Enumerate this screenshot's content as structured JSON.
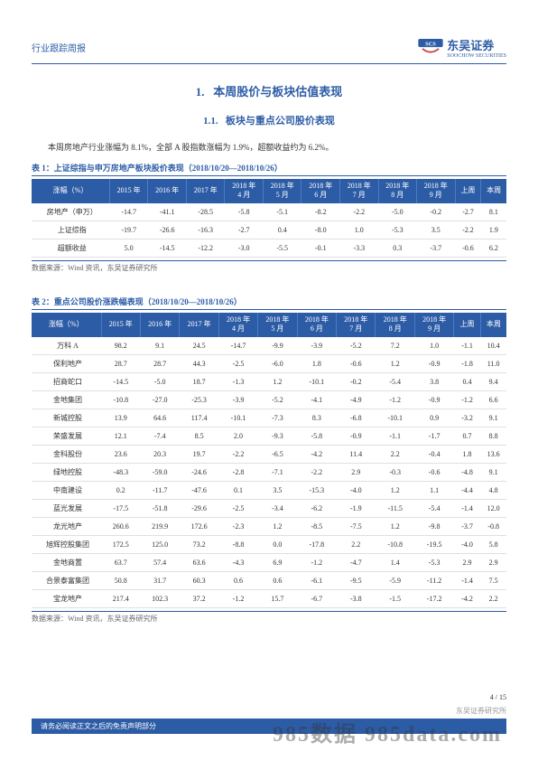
{
  "header": {
    "title": "行业跟踪周报",
    "company": "东吴证券",
    "company_en": "SOOCHOW SECURITIES"
  },
  "section": {
    "number": "1.",
    "title": "本周股价与板块估值表现"
  },
  "subsection": {
    "number": "1.1.",
    "title": "板块与重点公司股价表现"
  },
  "body_text": "本周房地产行业涨幅为 8.1%，全部 A 股指数涨幅为 1.9%，超额收益约为 6.2%。",
  "table1": {
    "title": "表 1：上证综指与申万房地产板块股价表现（2018/10/20—2018/10/26）",
    "columns": [
      "涨幅（%）",
      "2015 年",
      "2016 年",
      "2017 年",
      "2018 年\n4 月",
      "2018 年\n5 月",
      "2018 年\n6 月",
      "2018 年\n7 月",
      "2018 年\n8 月",
      "2018 年\n9 月",
      "上周",
      "本周"
    ],
    "rows": [
      [
        "房地产（申万）",
        "-14.7",
        "-41.1",
        "-28.5",
        "-5.8",
        "-5.1",
        "-8.2",
        "-2.2",
        "-5.0",
        "-0.2",
        "-2.7",
        "8.1"
      ],
      [
        "上证综指",
        "-19.7",
        "-26.6",
        "-16.3",
        "-2.7",
        "0.4",
        "-8.0",
        "1.0",
        "-5.3",
        "3.5",
        "-2.2",
        "1.9"
      ],
      [
        "超额收益",
        "5.0",
        "-14.5",
        "-12.2",
        "-3.0",
        "-5.5",
        "-0.1",
        "-3.3",
        "0.3",
        "-3.7",
        "-0.6",
        "6.2"
      ]
    ],
    "source": "数据来源：Wind 资讯，东吴证券研究所"
  },
  "table2": {
    "title": "表 2：重点公司股价涨跌幅表现（2018/10/20—2018/10/26）",
    "columns": [
      "涨幅（%）",
      "2015 年",
      "2016 年",
      "2017 年",
      "2018 年\n4 月",
      "2018 年\n5 月",
      "2018 年\n6 月",
      "2018 年\n7 月",
      "2018 年\n8 月",
      "2018 年\n9 月",
      "上周",
      "本周"
    ],
    "rows": [
      [
        "万科 A",
        "98.2",
        "9.1",
        "24.5",
        "-14.7",
        "-9.9",
        "-3.9",
        "-5.2",
        "7.2",
        "1.0",
        "-1.1",
        "10.4"
      ],
      [
        "保利地产",
        "28.7",
        "28.7",
        "44.3",
        "-2.5",
        "-6.0",
        "1.8",
        "-0.6",
        "1.2",
        "-0.9",
        "-1.8",
        "11.0"
      ],
      [
        "招商蛇口",
        "-14.5",
        "-5.0",
        "18.7",
        "-1.3",
        "1.2",
        "-10.1",
        "-0.2",
        "-5.4",
        "3.8",
        "0.4",
        "9.4"
      ],
      [
        "金地集团",
        "-10.8",
        "-27.0",
        "-25.3",
        "-3.9",
        "-5.2",
        "-4.1",
        "-4.9",
        "-1.2",
        "-0.9",
        "-1.2",
        "6.6"
      ],
      [
        "新城控股",
        "13.9",
        "64.6",
        "117.4",
        "-10.1",
        "-7.3",
        "8.3",
        "-6.8",
        "-10.1",
        "0.9",
        "-3.2",
        "9.1"
      ],
      [
        "荣盛发展",
        "12.1",
        "-7.4",
        "8.5",
        "2.0",
        "-9.3",
        "-5.8",
        "-0.9",
        "-1.1",
        "-1.7",
        "0.7",
        "8.8"
      ],
      [
        "金科股份",
        "23.6",
        "20.3",
        "19.7",
        "-2.2",
        "-6.5",
        "-4.2",
        "11.4",
        "2.2",
        "-0.4",
        "1.8",
        "13.6"
      ],
      [
        "绿地控股",
        "-48.3",
        "-59.0",
        "-24.6",
        "-2.8",
        "-7.1",
        "-2.2",
        "2.9",
        "-0.3",
        "-0.6",
        "-4.8",
        "9.1"
      ],
      [
        "中南建设",
        "0.2",
        "-11.7",
        "-47.6",
        "0.1",
        "3.5",
        "-15.3",
        "-4.0",
        "1.2",
        "1.1",
        "-4.4",
        "4.8"
      ],
      [
        "蓝光发展",
        "-17.5",
        "-51.8",
        "-29.6",
        "-2.5",
        "-3.4",
        "-6.2",
        "-1.9",
        "-11.5",
        "-5.4",
        "-1.4",
        "12.0"
      ],
      [
        "龙光地产",
        "260.6",
        "219.9",
        "172.6",
        "-2.3",
        "1.2",
        "-8.5",
        "-7.5",
        "1.2",
        "-9.8",
        "-3.7",
        "-0.8"
      ],
      [
        "旭辉控股集团",
        "172.5",
        "125.0",
        "73.2",
        "-8.8",
        "0.0",
        "-17.8",
        "2.2",
        "-10.8",
        "-19.5",
        "-4.0",
        "5.8"
      ],
      [
        "金地商置",
        "63.7",
        "57.4",
        "63.6",
        "-4.3",
        "6.9",
        "-1.2",
        "-4.7",
        "1.4",
        "-5.3",
        "2.9",
        "2.9"
      ],
      [
        "合景泰富集团",
        "50.8",
        "31.7",
        "60.3",
        "0.6",
        "0.6",
        "-6.1",
        "-9.5",
        "-5.9",
        "-11.2",
        "-1.4",
        "7.5"
      ],
      [
        "宝龙地产",
        "217.4",
        "102.3",
        "37.2",
        "-1.2",
        "15.7",
        "-6.7",
        "-3.8",
        "-1.5",
        "-17.2",
        "-4.2",
        "2.2"
      ]
    ],
    "source": "数据来源：Wind 资讯，东吴证券研究所"
  },
  "footer": {
    "page": "4 / 15",
    "org": "东吴证券研究所",
    "disclaimer": "请务必阅读正文之后的免责声明部分"
  },
  "watermark": "985数据 985data.com"
}
